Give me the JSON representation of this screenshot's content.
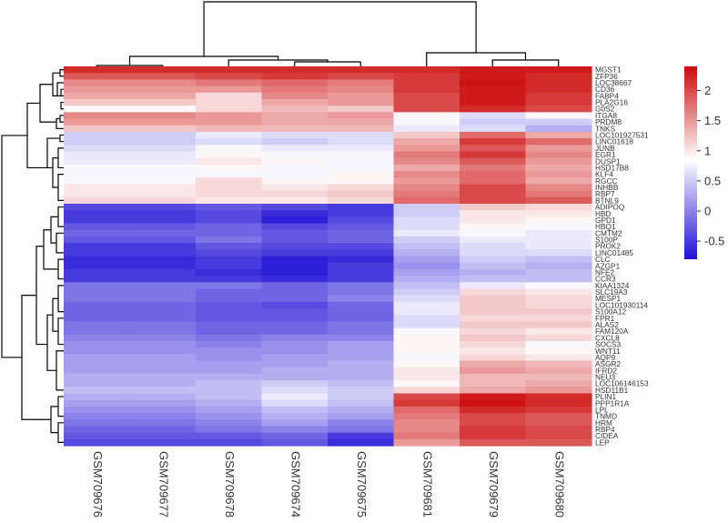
{
  "chart_data": {
    "type": "heatmap",
    "title": "",
    "xlabel": "",
    "ylabel": "",
    "columns": [
      "GSM709676",
      "GSM709677",
      "GSM709678",
      "GSM709674",
      "GSM709675",
      "GSM709681",
      "GSM709679",
      "GSM709680"
    ],
    "rows": [
      "MGST1",
      "ZFP36",
      "LOC38667",
      "CD36",
      "FABP4",
      "PLA2G16",
      "G0S2",
      "ITGA8",
      "PRDM8",
      "TNKS",
      "LOC101927531",
      "LINC01618",
      "JUNB",
      "EGR1",
      "DUSP1",
      "HSD17B8",
      "KLF4",
      "RGCC",
      "INHBB",
      "RBP7",
      "BTNL9",
      "ADIPOQ",
      "HBD",
      "GPD1",
      "HBQ1",
      "CMTM2",
      "S100P",
      "PROK2",
      "LINC01485",
      "CLC",
      "AZGP1",
      "NFE2",
      "CCR3",
      "KIAA1324",
      "SLC19A3",
      "MESP1",
      "LOC101930114",
      "S100A12",
      "FPR1",
      "ALAS2",
      "FAM120A",
      "CXCL8",
      "SOCS3",
      "WNT11",
      "AQP9",
      "ASGR2",
      "IFRD2",
      "NEU3",
      "LOC106146153",
      "HSD11B1",
      "PLIN1",
      "PPP1R1A",
      "LPL",
      "TNMD",
      "HRM",
      "RBP4",
      "CIDEA",
      "LEP"
    ],
    "values": [
      [
        2.2,
        2.2,
        2.2,
        2.2,
        2.2,
        2.2,
        2.3,
        2.3
      ],
      [
        1.9,
        1.9,
        2.0,
        2.1,
        2.0,
        2.1,
        2.3,
        2.2
      ],
      [
        1.6,
        1.6,
        1.7,
        1.8,
        1.7,
        2.1,
        2.35,
        2.2
      ],
      [
        1.5,
        1.5,
        1.5,
        1.7,
        1.6,
        2.1,
        2.3,
        2.2
      ],
      [
        1.4,
        1.4,
        1.1,
        1.6,
        1.5,
        2.0,
        2.3,
        2.1
      ],
      [
        1.2,
        1.2,
        1.1,
        1.4,
        1.5,
        2.0,
        2.3,
        2.1
      ],
      [
        0.9,
        0.9,
        1.1,
        1.3,
        1.2,
        2.0,
        2.2,
        2.0
      ],
      [
        1.6,
        1.6,
        1.5,
        1.4,
        1.5,
        0.9,
        0.6,
        0.9
      ],
      [
        1.5,
        1.5,
        1.5,
        1.4,
        1.4,
        0.8,
        0.5,
        0.5
      ],
      [
        1.2,
        1.2,
        1.3,
        1.3,
        1.3,
        0.7,
        0.6,
        0.3
      ],
      [
        0.5,
        0.5,
        0.7,
        0.6,
        0.6,
        1.2,
        1.8,
        1.4
      ],
      [
        0.5,
        0.5,
        0.6,
        0.5,
        0.6,
        1.4,
        2.1,
        1.8
      ],
      [
        0.6,
        0.6,
        0.8,
        0.7,
        0.7,
        1.5,
        1.9,
        1.5
      ],
      [
        0.7,
        0.7,
        0.9,
        0.8,
        0.8,
        1.7,
        2.1,
        1.6
      ],
      [
        0.7,
        0.7,
        1.0,
        0.9,
        0.8,
        1.6,
        1.9,
        1.5
      ],
      [
        0.8,
        0.8,
        0.9,
        0.8,
        0.8,
        1.4,
        1.7,
        1.4
      ],
      [
        0.8,
        0.8,
        0.8,
        0.8,
        0.9,
        1.6,
        1.8,
        1.5
      ],
      [
        0.8,
        0.8,
        1.1,
        0.9,
        0.9,
        1.5,
        1.8,
        1.4
      ],
      [
        1.0,
        1.0,
        1.1,
        1.0,
        1.1,
        1.6,
        2.0,
        1.6
      ],
      [
        1.0,
        1.0,
        1.1,
        1.1,
        1.2,
        1.7,
        2.0,
        1.7
      ],
      [
        1.1,
        1.1,
        1.0,
        1.0,
        1.1,
        1.8,
        2.0,
        1.9
      ],
      [
        -0.4,
        -0.4,
        -0.3,
        -0.4,
        -0.5,
        0.5,
        1.2,
        1.1
      ],
      [
        -0.5,
        -0.5,
        -0.4,
        -0.6,
        -0.5,
        0.5,
        1.0,
        1.0
      ],
      [
        -0.5,
        -0.5,
        -0.4,
        -0.7,
        -0.4,
        0.6,
        1.0,
        0.9
      ],
      [
        -0.3,
        -0.3,
        -0.2,
        -0.4,
        -0.3,
        0.6,
        0.9,
        0.8
      ],
      [
        -0.2,
        -0.2,
        -0.2,
        -0.3,
        -0.2,
        0.7,
        0.8,
        0.7
      ],
      [
        -0.3,
        -0.3,
        -0.1,
        -0.3,
        -0.2,
        0.5,
        0.7,
        0.7
      ],
      [
        -0.5,
        -0.5,
        -0.3,
        -0.4,
        -0.4,
        0.4,
        0.6,
        0.7
      ],
      [
        -0.5,
        -0.5,
        -0.4,
        -0.5,
        -0.5,
        0.3,
        0.6,
        0.6
      ],
      [
        -0.6,
        -0.6,
        -0.5,
        -0.7,
        -0.6,
        0.2,
        0.5,
        0.4
      ],
      [
        -0.6,
        -0.6,
        -0.5,
        -0.7,
        -0.5,
        0.1,
        0.4,
        0.3
      ],
      [
        -0.5,
        -0.5,
        -0.6,
        -0.7,
        -0.5,
        0.2,
        0.3,
        0.4
      ],
      [
        -0.5,
        -0.5,
        -0.5,
        -0.6,
        -0.5,
        0.3,
        0.4,
        0.4
      ],
      [
        -0.1,
        -0.1,
        -0.1,
        -0.2,
        -0.1,
        0.4,
        0.7,
        0.8
      ],
      [
        -0.1,
        -0.1,
        -0.2,
        -0.2,
        -0.1,
        0.5,
        1.1,
        1.0
      ],
      [
        -0.1,
        -0.1,
        -0.2,
        -0.2,
        0.0,
        0.6,
        1.2,
        1.1
      ],
      [
        -0.2,
        -0.2,
        -0.3,
        -0.4,
        -0.2,
        0.7,
        1.2,
        1.1
      ],
      [
        -0.2,
        -0.2,
        -0.3,
        -0.3,
        -0.2,
        0.7,
        1.2,
        1.2
      ],
      [
        -0.2,
        -0.2,
        -0.3,
        -0.3,
        -0.2,
        0.6,
        1.1,
        1.1
      ],
      [
        -0.1,
        -0.1,
        -0.2,
        -0.2,
        -0.1,
        0.6,
        1.2,
        1.2
      ],
      [
        -0.1,
        -0.1,
        -0.2,
        -0.2,
        -0.1,
        0.8,
        1.1,
        1.0
      ],
      [
        0.0,
        0.0,
        -0.1,
        0.0,
        0.0,
        0.9,
        1.2,
        1.1
      ],
      [
        0.1,
        0.1,
        0.0,
        0.1,
        0.2,
        0.9,
        1.1,
        0.8
      ],
      [
        0.1,
        0.1,
        0.1,
        0.1,
        0.2,
        0.9,
        1.0,
        0.9
      ],
      [
        0.2,
        0.2,
        0.1,
        0.2,
        0.2,
        0.8,
        1.1,
        1.0
      ],
      [
        0.2,
        0.2,
        0.2,
        0.2,
        0.3,
        0.9,
        1.4,
        1.3
      ],
      [
        0.2,
        0.2,
        0.2,
        0.3,
        0.3,
        1.0,
        1.5,
        1.4
      ],
      [
        0.3,
        0.3,
        0.3,
        0.3,
        0.3,
        1.0,
        1.3,
        1.3
      ],
      [
        0.3,
        0.3,
        0.4,
        0.5,
        0.4,
        0.9,
        1.3,
        1.4
      ],
      [
        0.4,
        0.4,
        0.4,
        0.6,
        0.5,
        1.1,
        1.4,
        1.5
      ],
      [
        0.3,
        0.3,
        0.4,
        0.7,
        0.5,
        2.0,
        2.3,
        2.2
      ],
      [
        0.2,
        0.2,
        0.3,
        0.6,
        0.4,
        2.1,
        2.35,
        2.2
      ],
      [
        0.1,
        0.1,
        0.2,
        0.4,
        0.3,
        1.8,
        2.2,
        2.1
      ],
      [
        0.0,
        0.0,
        0.1,
        0.3,
        0.2,
        1.7,
        2.0,
        1.9
      ],
      [
        -0.1,
        -0.1,
        0.0,
        0.2,
        0.0,
        1.6,
        2.0,
        1.9
      ],
      [
        -0.2,
        -0.2,
        -0.1,
        0.0,
        -0.1,
        1.6,
        2.1,
        2.0
      ],
      [
        -0.3,
        -0.3,
        -0.3,
        -0.2,
        -0.5,
        1.7,
        2.1,
        2.0
      ],
      [
        -0.4,
        -0.4,
        -0.4,
        -0.3,
        -0.6,
        1.5,
        1.9,
        1.9
      ]
    ],
    "colorbar": {
      "min": -0.8,
      "max": 2.4,
      "ticks": [
        2,
        1.5,
        1,
        0.5,
        0,
        -0.5
      ],
      "tick_labels": [
        "2",
        "1.5",
        "1",
        "0.5",
        "0",
        "-0.5"
      ],
      "colors": {
        "low": "#1f0fd6",
        "mid": "#ffffff",
        "high": "#cc0a0a"
      },
      "mid_value": 0.85
    },
    "grid": false,
    "legend_position": "right",
    "row_dendrogram_side": "left",
    "column_dendrogram_side": "top"
  }
}
